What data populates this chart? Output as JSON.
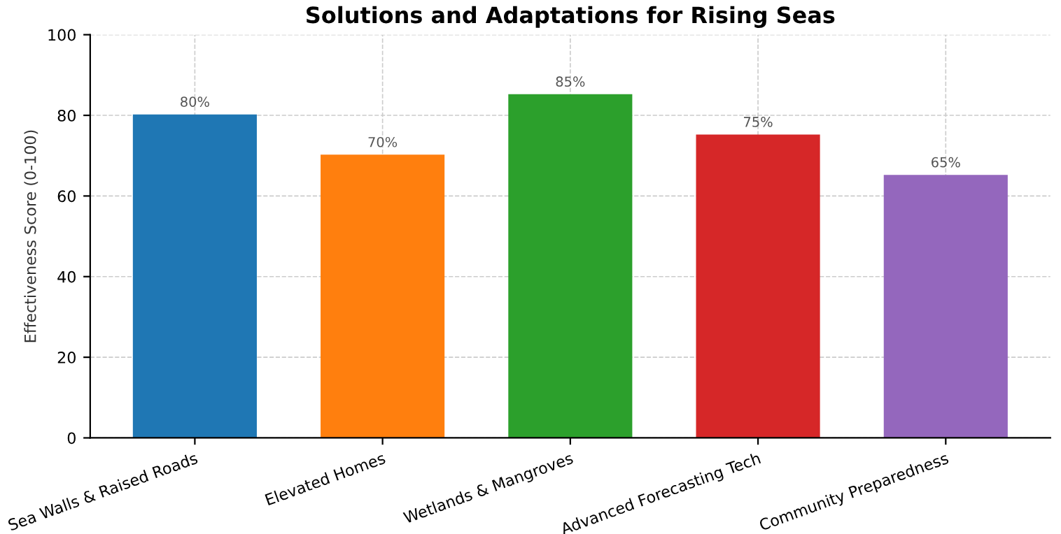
{
  "chart_data": {
    "type": "bar",
    "title": "Solutions and Adaptations for Rising Seas",
    "ylabel": "Effectiveness Score (0-100)",
    "categories": [
      "Sea Walls & Raised Roads",
      "Elevated Homes",
      "Wetlands & Mangroves",
      "Advanced Forecasting Tech",
      "Community Preparedness"
    ],
    "values": [
      80,
      70,
      85,
      75,
      65
    ],
    "colors": [
      "#1f77b4",
      "#ff7f0e",
      "#2ca02c",
      "#d62728",
      "#9467bd"
    ],
    "value_labels": [
      "80%",
      "70%",
      "85%",
      "75%",
      "65%"
    ],
    "ylim": [
      0,
      100
    ],
    "yticks": [
      0,
      20,
      40,
      60,
      80,
      100
    ],
    "grid": true
  }
}
